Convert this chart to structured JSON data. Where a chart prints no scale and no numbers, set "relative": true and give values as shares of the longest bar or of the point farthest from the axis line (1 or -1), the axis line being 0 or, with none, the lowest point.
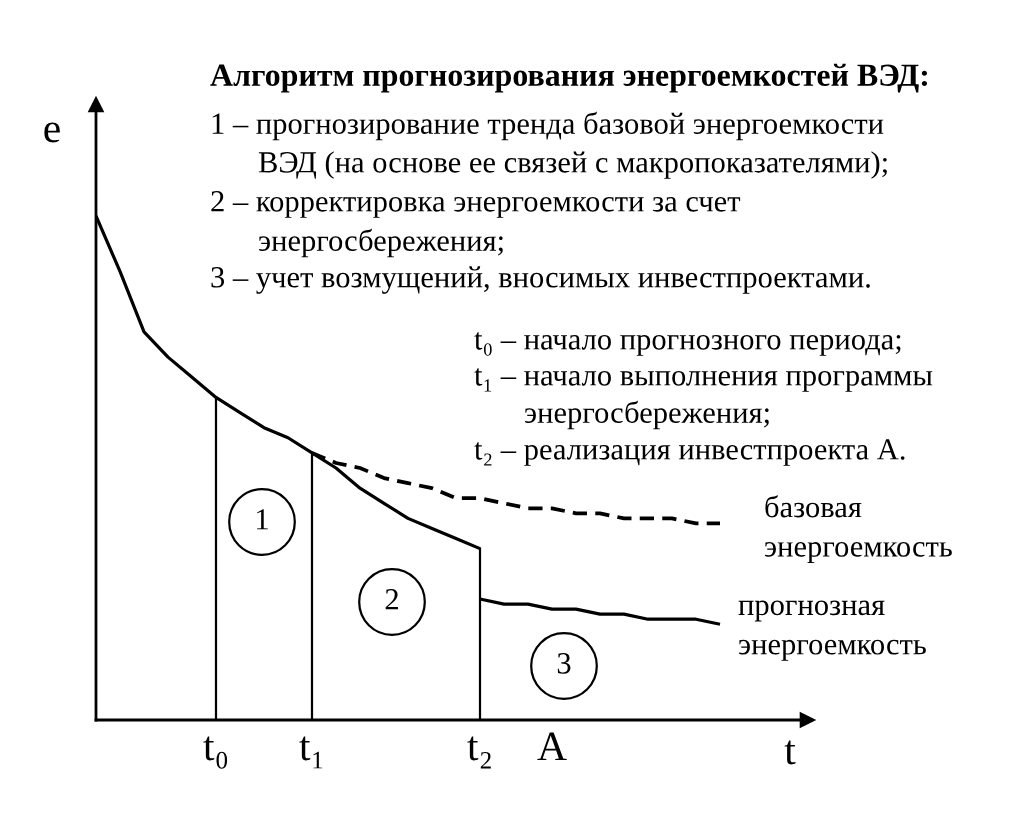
{
  "chart_data": {
    "type": "line",
    "title": "Алгоритм прогнозирования энергоемкостей ВЭД:",
    "xlabel": "t",
    "ylabel": "e",
    "relative": true,
    "tick_labels": "x",
    "categories": [
      null,
      null,
      null,
      null,
      null,
      "t₀",
      null,
      null,
      null,
      "t₁",
      null,
      null,
      null,
      null,
      null,
      null,
      "t₂",
      null,
      null,
      "А",
      null,
      null,
      null,
      null,
      null,
      null,
      null
    ],
    "series": [
      {
        "color": "#000000",
        "line_style": "solid",
        "values": [
          1.0,
          0.89,
          0.77,
          0.72,
          0.68,
          0.64,
          0.61,
          0.58,
          0.56,
          0.53,
          0.5,
          0.46,
          0.43,
          0.4,
          0.38,
          0.36,
          0.34,
          null,
          null,
          null,
          null,
          null,
          null,
          null,
          null,
          null,
          null
        ]
      },
      {
        "name": "прогнозная\nэнергоемкость",
        "color": "#000000",
        "line_style": "solid",
        "values": [
          null,
          null,
          null,
          null,
          null,
          null,
          null,
          null,
          null,
          null,
          null,
          null,
          null,
          null,
          null,
          null,
          0.24,
          0.23,
          0.23,
          0.22,
          0.22,
          0.21,
          0.21,
          0.2,
          0.2,
          0.2,
          0.19
        ]
      },
      {
        "name": "базовая\nэнергоемкость",
        "color": "#000000",
        "line_style": "dashed",
        "values": [
          null,
          null,
          null,
          null,
          null,
          null,
          null,
          null,
          null,
          0.53,
          0.51,
          0.5,
          0.48,
          0.47,
          0.46,
          0.44,
          0.44,
          0.43,
          0.42,
          0.42,
          0.41,
          0.41,
          0.4,
          0.4,
          0.4,
          0.39,
          0.39
        ]
      }
    ],
    "ref_lines": [
      {
        "axis": "x",
        "value": "t₀",
        "color": "#000000",
        "line_style": "solid"
      },
      {
        "axis": "x",
        "value": "t₁",
        "color": "#000000",
        "line_style": "solid"
      },
      {
        "axis": "x",
        "value": "t₂",
        "color": "#000000",
        "line_style": "solid"
      }
    ],
    "annotations": [
      "1 – прогнозирование тренда базовой энергоемкости\nВЭД (на основе ее связей с макропоказателями);",
      "2 – корректировка энергоемкости за счет\nэнергосбережения;",
      "3 – учет возмущений, вносимых инвестпроектами.",
      "t₀ – начало прогнозного периода;",
      "t₁ – начало выполнения программы\nэнергосбережения;",
      "t₂ – реализация инвестпроекта А.",
      "1",
      "2",
      "3"
    ]
  }
}
